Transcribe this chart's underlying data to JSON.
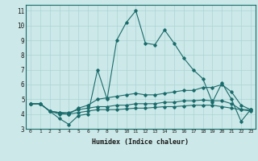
{
  "xlabel": "Humidex (Indice chaleur)",
  "bg_color": "#cce8e8",
  "line_color": "#1a6b6b",
  "grid_color": "#aad4d4",
  "xlim": [
    -0.5,
    23.5
  ],
  "ylim": [
    3,
    11.4
  ],
  "xticks": [
    0,
    1,
    2,
    3,
    4,
    5,
    6,
    7,
    8,
    9,
    10,
    11,
    12,
    13,
    14,
    15,
    16,
    17,
    18,
    19,
    20,
    21,
    22,
    23
  ],
  "yticks": [
    3,
    4,
    5,
    6,
    7,
    8,
    9,
    10,
    11
  ],
  "lines": [
    {
      "x": [
        0,
        1,
        2,
        3,
        4,
        5,
        6,
        7,
        8,
        9,
        10,
        11,
        12,
        13,
        14,
        15,
        16,
        17,
        18,
        19,
        20,
        21,
        22,
        23
      ],
      "y": [
        4.7,
        4.7,
        4.2,
        3.7,
        3.3,
        3.9,
        4.0,
        7.0,
        5.0,
        9.0,
        10.2,
        11.0,
        8.8,
        8.7,
        9.7,
        8.8,
        7.8,
        7.0,
        6.4,
        4.8,
        6.1,
        5.0,
        3.5,
        4.3
      ]
    },
    {
      "x": [
        0,
        1,
        2,
        3,
        4,
        5,
        6,
        7,
        8,
        9,
        10,
        11,
        12,
        13,
        14,
        15,
        16,
        17,
        18,
        19,
        20,
        21,
        22,
        23
      ],
      "y": [
        4.7,
        4.7,
        4.2,
        4.1,
        4.0,
        4.4,
        4.6,
        5.0,
        5.1,
        5.2,
        5.3,
        5.4,
        5.3,
        5.3,
        5.4,
        5.5,
        5.6,
        5.6,
        5.8,
        5.8,
        6.0,
        5.5,
        4.6,
        4.3
      ]
    },
    {
      "x": [
        0,
        1,
        2,
        3,
        4,
        5,
        6,
        7,
        8,
        9,
        10,
        11,
        12,
        13,
        14,
        15,
        16,
        17,
        18,
        19,
        20,
        21,
        22,
        23
      ],
      "y": [
        4.7,
        4.7,
        4.2,
        4.1,
        4.1,
        4.3,
        4.4,
        4.5,
        4.5,
        4.6,
        4.6,
        4.7,
        4.7,
        4.7,
        4.8,
        4.8,
        4.9,
        4.9,
        4.95,
        4.9,
        4.9,
        4.7,
        4.3,
        4.3
      ]
    },
    {
      "x": [
        0,
        1,
        2,
        3,
        4,
        5,
        6,
        7,
        8,
        9,
        10,
        11,
        12,
        13,
        14,
        15,
        16,
        17,
        18,
        19,
        20,
        21,
        22,
        23
      ],
      "y": [
        4.7,
        4.7,
        4.2,
        4.0,
        4.0,
        4.1,
        4.2,
        4.3,
        4.3,
        4.3,
        4.35,
        4.4,
        4.4,
        4.45,
        4.5,
        4.5,
        4.55,
        4.6,
        4.6,
        4.6,
        4.5,
        4.4,
        4.3,
        4.2
      ]
    }
  ]
}
